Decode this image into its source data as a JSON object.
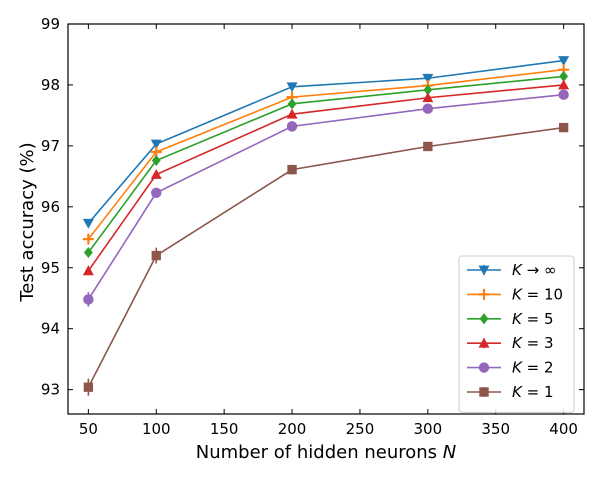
{
  "chart_data": {
    "type": "line",
    "title": "",
    "xlabel": "Number of hidden neurons",
    "xlabel_symbol": "N",
    "ylabel": "Test accuracy (%)",
    "xlim": [
      35,
      415
    ],
    "ylim": [
      92.6,
      99.0
    ],
    "xticks": [
      50,
      100,
      150,
      200,
      250,
      300,
      350,
      400
    ],
    "yticks": [
      93,
      94,
      95,
      96,
      97,
      98,
      99
    ],
    "legend_position": "lower-right",
    "grid": false,
    "x": [
      50,
      100,
      200,
      300,
      400
    ],
    "series": [
      {
        "name_symbol": "K",
        "name_value": "→ ∞",
        "color": "#1f77b4",
        "marker": "triangle-down",
        "values": [
          95.73,
          97.03,
          97.97,
          98.11,
          98.4
        ],
        "errors": [
          0.04,
          0.04,
          0.03,
          0.03,
          0.03
        ]
      },
      {
        "name_symbol": "K",
        "name_value": "= 10",
        "color": "#ff7f0e",
        "marker": "plus",
        "values": [
          95.47,
          96.9,
          97.8,
          97.99,
          98.25
        ],
        "errors": [
          0.05,
          0.05,
          0.04,
          0.04,
          0.04
        ]
      },
      {
        "name_symbol": "K",
        "name_value": "= 5",
        "color": "#2ca02c",
        "marker": "diamond",
        "values": [
          95.25,
          96.76,
          97.69,
          97.92,
          98.14
        ],
        "errors": [
          0.06,
          0.05,
          0.04,
          0.04,
          0.04
        ]
      },
      {
        "name_symbol": "K",
        "name_value": "= 3",
        "color": "#d62728",
        "marker": "triangle-up",
        "values": [
          94.95,
          96.53,
          97.52,
          97.79,
          98.0
        ],
        "errors": [
          0.07,
          0.06,
          0.05,
          0.05,
          0.04
        ]
      },
      {
        "name_symbol": "K",
        "name_value": "= 2",
        "color": "#9467bd",
        "marker": "circle",
        "values": [
          94.48,
          96.23,
          97.32,
          97.61,
          97.84
        ],
        "errors": [
          0.12,
          0.08,
          0.06,
          0.05,
          0.05
        ]
      },
      {
        "name_symbol": "K",
        "name_value": "= 1",
        "color": "#8c564b",
        "marker": "square",
        "values": [
          93.04,
          95.2,
          96.61,
          96.99,
          97.3
        ],
        "errors": [
          0.14,
          0.13,
          0.08,
          0.07,
          0.06
        ]
      }
    ]
  }
}
